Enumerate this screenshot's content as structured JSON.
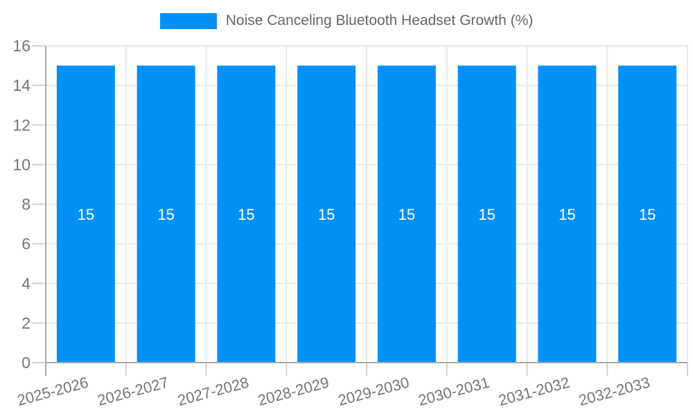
{
  "chart_data": {
    "type": "bar",
    "series_name": "Noise Canceling Bluetooth Headset Growth (%)",
    "categories": [
      "2025-2026",
      "2026-2027",
      "2027-2028",
      "2028-2029",
      "2029-2030",
      "2030-2031",
      "2031-2032",
      "2032-2033"
    ],
    "values": [
      15,
      15,
      15,
      15,
      15,
      15,
      15,
      15
    ],
    "value_labels": [
      "15",
      "15",
      "15",
      "15",
      "15",
      "15",
      "15",
      "15"
    ],
    "title": "",
    "xlabel": "",
    "ylabel": "",
    "ylim": [
      0,
      16
    ],
    "yticks": [
      0,
      2,
      4,
      6,
      8,
      10,
      12,
      14,
      16
    ],
    "ytick_labels": [
      "0",
      "2",
      "4",
      "6",
      "8",
      "10",
      "12",
      "14",
      "16"
    ],
    "grid": true,
    "legend_position": "top",
    "xtick_rotation_deg": -15,
    "colors": {
      "bar": "#0590f8",
      "value_label": "#ffffff",
      "grid_line": "#e8e8e8",
      "axis_line": "#a8a8a8",
      "tick_mark": "#d2d2d2",
      "tick_text": "#757575",
      "legend_text": "#666666",
      "background": "#ffffff"
    }
  }
}
